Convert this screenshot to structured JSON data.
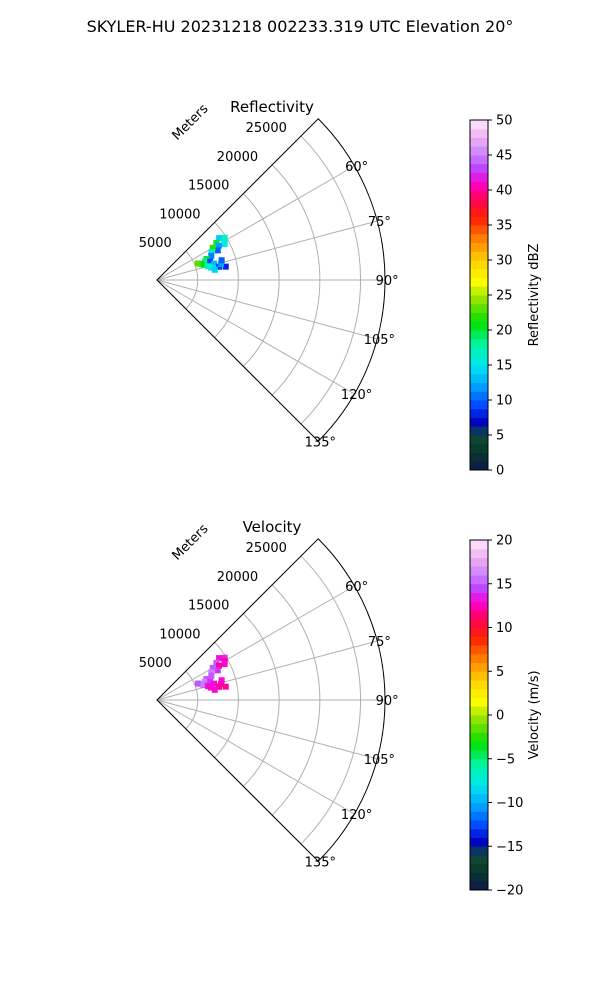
{
  "suptitle": "SKYLER-HU  20231218  002233.319 UTC Elevation 20°",
  "chart_data": [
    {
      "type": "scatter",
      "subtype": "polar-ppi",
      "title": "Reflectivity",
      "radial_label": "Meters",
      "theta_direction": "clockwise",
      "theta_zero": "north",
      "theta_range_deg": [
        45,
        135
      ],
      "r_range": [
        0,
        28000
      ],
      "radial_ticks": [
        5000,
        10000,
        15000,
        20000,
        25000
      ],
      "radial_tick_labels": [
        "5000",
        "10000",
        "15000",
        "20000",
        "25000"
      ],
      "angle_ticks": [
        60,
        75,
        90,
        105,
        120,
        135
      ],
      "angle_tick_labels": [
        "60°",
        "75°",
        "90°",
        "105°",
        "120°",
        "135°"
      ],
      "grid": true,
      "colorbar": {
        "label": "Reflectivity dBZ",
        "range": [
          0,
          50
        ],
        "ticks": [
          0,
          5,
          10,
          15,
          20,
          25,
          30,
          35,
          40,
          45,
          50
        ],
        "tick_labels": [
          "0",
          "5",
          "10",
          "15",
          "20",
          "25",
          "30",
          "35",
          "40",
          "45",
          "50"
        ],
        "colormap": "HomeyerRainbow"
      },
      "points": [
        {
          "azimuth": 56,
          "range": 9200,
          "value": 14
        },
        {
          "azimuth": 58,
          "range": 9800,
          "value": 16
        },
        {
          "azimuth": 60,
          "range": 9600,
          "value": 18
        },
        {
          "azimuth": 62,
          "range": 9400,
          "value": 15
        },
        {
          "azimuth": 58,
          "range": 8600,
          "value": 20
        },
        {
          "azimuth": 61,
          "range": 8700,
          "value": 12
        },
        {
          "azimuth": 64,
          "range": 8300,
          "value": 10
        },
        {
          "azimuth": 60,
          "range": 7900,
          "value": 22
        },
        {
          "azimuth": 63,
          "range": 7500,
          "value": 16
        },
        {
          "azimuth": 66,
          "range": 7300,
          "value": 11
        },
        {
          "azimuth": 67,
          "range": 6600,
          "value": 20
        },
        {
          "azimuth": 69,
          "range": 6300,
          "value": 18
        },
        {
          "azimuth": 71,
          "range": 6900,
          "value": 9
        },
        {
          "azimuth": 72,
          "range": 6000,
          "value": 19
        },
        {
          "azimuth": 74,
          "range": 7300,
          "value": 13
        },
        {
          "azimuth": 75,
          "range": 6500,
          "value": 17
        },
        {
          "azimuth": 77,
          "range": 6800,
          "value": 16
        },
        {
          "azimuth": 78,
          "range": 7800,
          "value": 9
        },
        {
          "azimuth": 79,
          "range": 8600,
          "value": 8
        },
        {
          "azimuth": 80,
          "range": 7200,
          "value": 14
        },
        {
          "azimuth": 76,
          "range": 8100,
          "value": 12
        },
        {
          "azimuth": 73,
          "range": 8300,
          "value": 10
        },
        {
          "azimuth": 70,
          "range": 5800,
          "value": 21
        },
        {
          "azimuth": 68,
          "range": 5400,
          "value": 23
        }
      ]
    },
    {
      "type": "scatter",
      "subtype": "polar-ppi",
      "title": "Velocity",
      "radial_label": "Meters",
      "theta_direction": "clockwise",
      "theta_zero": "north",
      "theta_range_deg": [
        45,
        135
      ],
      "r_range": [
        0,
        28000
      ],
      "radial_ticks": [
        5000,
        10000,
        15000,
        20000,
        25000
      ],
      "radial_tick_labels": [
        "5000",
        "10000",
        "15000",
        "20000",
        "25000"
      ],
      "angle_ticks": [
        60,
        75,
        90,
        105,
        120,
        135
      ],
      "angle_tick_labels": [
        "60°",
        "75°",
        "90°",
        "105°",
        "120°",
        "135°"
      ],
      "grid": true,
      "colorbar": {
        "label": "Velocity (m/s)",
        "range": [
          -20,
          20
        ],
        "ticks": [
          -20,
          -15,
          -10,
          -5,
          0,
          5,
          10,
          15,
          20
        ],
        "tick_labels": [
          "−20",
          "−15",
          "−10",
          "−5",
          "0",
          "5",
          "10",
          "15",
          "20"
        ],
        "colormap": "HomeyerRainbow"
      },
      "points": [
        {
          "azimuth": 56,
          "range": 9200,
          "value": 13
        },
        {
          "azimuth": 58,
          "range": 9800,
          "value": 14
        },
        {
          "azimuth": 60,
          "range": 9600,
          "value": 12
        },
        {
          "azimuth": 62,
          "range": 9400,
          "value": 13
        },
        {
          "azimuth": 58,
          "range": 8600,
          "value": 15
        },
        {
          "azimuth": 61,
          "range": 8700,
          "value": 12
        },
        {
          "azimuth": 64,
          "range": 8300,
          "value": 14
        },
        {
          "azimuth": 60,
          "range": 7900,
          "value": 15
        },
        {
          "azimuth": 63,
          "range": 7500,
          "value": 16
        },
        {
          "azimuth": 66,
          "range": 7300,
          "value": 15
        },
        {
          "azimuth": 67,
          "range": 6600,
          "value": 15
        },
        {
          "azimuth": 69,
          "range": 6300,
          "value": 16
        },
        {
          "azimuth": 71,
          "range": 6900,
          "value": 14
        },
        {
          "azimuth": 72,
          "range": 6000,
          "value": 15
        },
        {
          "azimuth": 74,
          "range": 7300,
          "value": 13
        },
        {
          "azimuth": 75,
          "range": 6500,
          "value": 13
        },
        {
          "azimuth": 77,
          "range": 6800,
          "value": 13
        },
        {
          "azimuth": 78,
          "range": 7800,
          "value": 12
        },
        {
          "azimuth": 79,
          "range": 8600,
          "value": 12
        },
        {
          "azimuth": 80,
          "range": 7200,
          "value": 13
        },
        {
          "azimuth": 76,
          "range": 8100,
          "value": 12
        },
        {
          "azimuth": 73,
          "range": 8300,
          "value": 13
        },
        {
          "azimuth": 70,
          "range": 5800,
          "value": 16
        },
        {
          "azimuth": 68,
          "range": 5400,
          "value": 15
        }
      ]
    }
  ]
}
